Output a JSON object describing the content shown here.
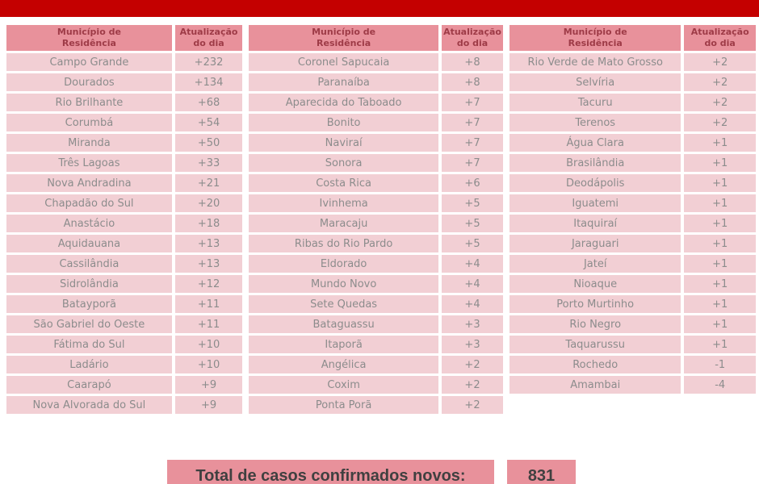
{
  "colors": {
    "bar_red": "#c40000",
    "header_bg": "#e8919b",
    "header_text": "#9e3b47",
    "row_bg": "#f2cfd4",
    "row_text": "#8c8c8c",
    "total_text": "#404040"
  },
  "header": {
    "municipality": "Município de\nResidência",
    "update": "Atualização\ndo dia"
  },
  "columns": [
    {
      "rows": [
        {
          "name": "Campo Grande",
          "value": "+232"
        },
        {
          "name": "Dourados",
          "value": "+134"
        },
        {
          "name": "Rio Brilhante",
          "value": "+68"
        },
        {
          "name": "Corumbá",
          "value": "+54"
        },
        {
          "name": "Miranda",
          "value": "+50"
        },
        {
          "name": "Três Lagoas",
          "value": "+33"
        },
        {
          "name": "Nova Andradina",
          "value": "+21"
        },
        {
          "name": "Chapadão do Sul",
          "value": "+20"
        },
        {
          "name": "Anastácio",
          "value": "+18"
        },
        {
          "name": "Aquidauana",
          "value": "+13"
        },
        {
          "name": "Cassilândia",
          "value": "+13"
        },
        {
          "name": "Sidrolândia",
          "value": "+12"
        },
        {
          "name": "Batayporã",
          "value": "+11"
        },
        {
          "name": "São Gabriel do Oeste",
          "value": "+11"
        },
        {
          "name": "Fátima do Sul",
          "value": "+10"
        },
        {
          "name": "Ladário",
          "value": "+10"
        },
        {
          "name": "Caarapó",
          "value": "+9"
        },
        {
          "name": "Nova Alvorada do Sul",
          "value": "+9"
        }
      ]
    },
    {
      "rows": [
        {
          "name": "Coronel Sapucaia",
          "value": "+8"
        },
        {
          "name": "Paranaíba",
          "value": "+8"
        },
        {
          "name": "Aparecida do Taboado",
          "value": "+7"
        },
        {
          "name": "Bonito",
          "value": "+7"
        },
        {
          "name": "Naviraí",
          "value": "+7"
        },
        {
          "name": "Sonora",
          "value": "+7"
        },
        {
          "name": "Costa Rica",
          "value": "+6"
        },
        {
          "name": "Ivinhema",
          "value": "+5"
        },
        {
          "name": "Maracaju",
          "value": "+5"
        },
        {
          "name": "Ribas do Rio Pardo",
          "value": "+5"
        },
        {
          "name": "Eldorado",
          "value": "+4"
        },
        {
          "name": "Mundo Novo",
          "value": "+4"
        },
        {
          "name": "Sete Quedas",
          "value": "+4"
        },
        {
          "name": "Bataguassu",
          "value": "+3"
        },
        {
          "name": "Itaporã",
          "value": "+3"
        },
        {
          "name": "Angélica",
          "value": "+2"
        },
        {
          "name": "Coxim",
          "value": "+2"
        },
        {
          "name": "Ponta Porã",
          "value": "+2"
        }
      ]
    },
    {
      "rows": [
        {
          "name": "Rio Verde de Mato Grosso",
          "value": "+2"
        },
        {
          "name": "Selvíria",
          "value": "+2"
        },
        {
          "name": "Tacuru",
          "value": "+2"
        },
        {
          "name": "Terenos",
          "value": "+2"
        },
        {
          "name": "Água Clara",
          "value": "+1"
        },
        {
          "name": "Brasilândia",
          "value": "+1"
        },
        {
          "name": "Deodápolis",
          "value": "+1"
        },
        {
          "name": "Iguatemi",
          "value": "+1"
        },
        {
          "name": "Itaquiraí",
          "value": "+1"
        },
        {
          "name": "Jaraguari",
          "value": "+1"
        },
        {
          "name": "Jateí",
          "value": "+1"
        },
        {
          "name": "Nioaque",
          "value": "+1"
        },
        {
          "name": "Porto Murtinho",
          "value": "+1"
        },
        {
          "name": "Rio Negro",
          "value": "+1"
        },
        {
          "name": "Taquarussu",
          "value": "+1"
        },
        {
          "name": "Rochedo",
          "value": "-1"
        },
        {
          "name": "Amambai",
          "value": "-4"
        }
      ]
    }
  ],
  "total": {
    "label": "Total de casos confirmados novos:",
    "value": "831"
  }
}
